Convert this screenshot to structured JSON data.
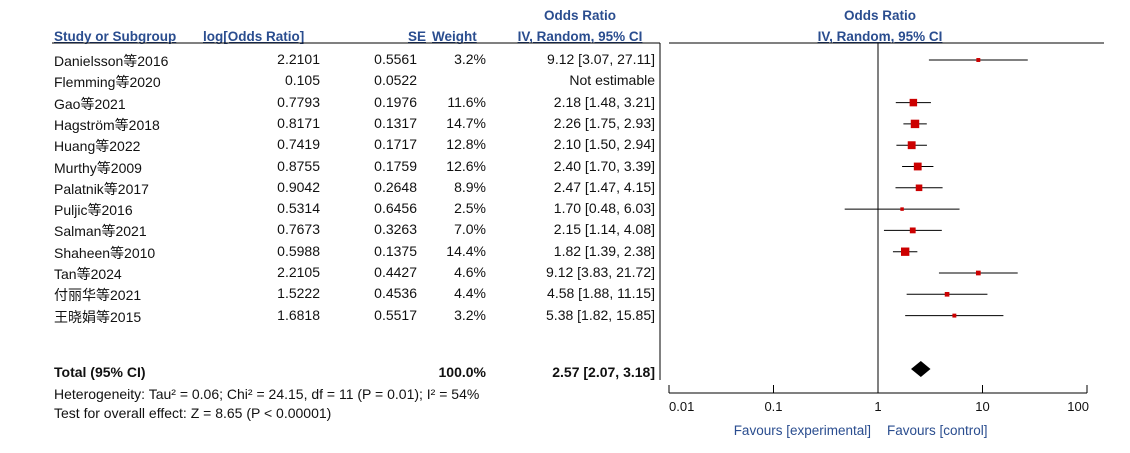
{
  "headers": {
    "study": "Study or Subgroup",
    "logor": "log[Odds Ratio]",
    "se": "SE",
    "weight": "Weight",
    "or_top": "Odds Ratio",
    "or_sub": "IV, Random, 95% CI",
    "plot_top": "Odds Ratio",
    "plot_sub": "IV, Random, 95% CI"
  },
  "chart_data": {
    "type": "forest",
    "x_scale": "log",
    "xlim": [
      0.01,
      100
    ],
    "x_ticks": [
      "0.01",
      "0.1",
      "1",
      "10",
      "100"
    ],
    "xlabel_left": "Favours [experimental]",
    "xlabel_right": "Favours [control]",
    "marker_color": "#cc0000",
    "studies": [
      {
        "name": "Danielsson等2016",
        "logor": "2.2101",
        "se": "0.5561",
        "weight": "3.2%",
        "ci_text": "9.12 [3.07, 27.11]",
        "or": 9.12,
        "lo": 3.07,
        "hi": 27.11,
        "w": 3.2
      },
      {
        "name": "Flemming等2020",
        "logor": "0.105",
        "se": "0.0522",
        "weight": "",
        "ci_text": "Not estimable",
        "or": null,
        "lo": null,
        "hi": null,
        "w": 0
      },
      {
        "name": "Gao等2021",
        "logor": "0.7793",
        "se": "0.1976",
        "weight": "11.6%",
        "ci_text": "2.18 [1.48, 3.21]",
        "or": 2.18,
        "lo": 1.48,
        "hi": 3.21,
        "w": 11.6
      },
      {
        "name": "Hagström等2018",
        "logor": "0.8171",
        "se": "0.1317",
        "weight": "14.7%",
        "ci_text": "2.26 [1.75, 2.93]",
        "or": 2.26,
        "lo": 1.75,
        "hi": 2.93,
        "w": 14.7
      },
      {
        "name": "Huang等2022",
        "logor": "0.7419",
        "se": "0.1717",
        "weight": "12.8%",
        "ci_text": "2.10 [1.50, 2.94]",
        "or": 2.1,
        "lo": 1.5,
        "hi": 2.94,
        "w": 12.8
      },
      {
        "name": "Murthy等2009",
        "logor": "0.8755",
        "se": "0.1759",
        "weight": "12.6%",
        "ci_text": "2.40 [1.70, 3.39]",
        "or": 2.4,
        "lo": 1.7,
        "hi": 3.39,
        "w": 12.6
      },
      {
        "name": "Palatnik等2017",
        "logor": "0.9042",
        "se": "0.2648",
        "weight": "8.9%",
        "ci_text": "2.47 [1.47, 4.15]",
        "or": 2.47,
        "lo": 1.47,
        "hi": 4.15,
        "w": 8.9
      },
      {
        "name": "Puljic等2016",
        "logor": "0.5314",
        "se": "0.6456",
        "weight": "2.5%",
        "ci_text": "1.70 [0.48, 6.03]",
        "or": 1.7,
        "lo": 0.48,
        "hi": 6.03,
        "w": 2.5
      },
      {
        "name": "Salman等2021",
        "logor": "0.7673",
        "se": "0.3263",
        "weight": "7.0%",
        "ci_text": "2.15 [1.14, 4.08]",
        "or": 2.15,
        "lo": 1.14,
        "hi": 4.08,
        "w": 7.0
      },
      {
        "name": "Shaheen等2010",
        "logor": "0.5988",
        "se": "0.1375",
        "weight": "14.4%",
        "ci_text": "1.82 [1.39, 2.38]",
        "or": 1.82,
        "lo": 1.39,
        "hi": 2.38,
        "w": 14.4
      },
      {
        "name": "Tan等2024",
        "logor": "2.2105",
        "se": "0.4427",
        "weight": "4.6%",
        "ci_text": "9.12 [3.83, 21.72]",
        "or": 9.12,
        "lo": 3.83,
        "hi": 21.72,
        "w": 4.6
      },
      {
        "name": "付丽华等2021",
        "logor": "1.5222",
        "se": "0.4536",
        "weight": "4.4%",
        "ci_text": "4.58 [1.88, 11.15]",
        "or": 4.58,
        "lo": 1.88,
        "hi": 11.15,
        "w": 4.4
      },
      {
        "name": "王晓娟等2015",
        "logor": "1.6818",
        "se": "0.5517",
        "weight": "3.2%",
        "ci_text": "5.38 [1.82, 15.85]",
        "or": 5.38,
        "lo": 1.82,
        "hi": 15.85,
        "w": 3.2
      }
    ],
    "total": {
      "label": "Total (95% CI)",
      "weight": "100.0%",
      "ci_text": "2.57 [2.07, 3.18]",
      "or": 2.57,
      "lo": 2.07,
      "hi": 3.18
    },
    "heterogeneity": "Heterogeneity: Tau² = 0.06; Chi² = 24.15, df = 11 (P = 0.01); I² = 54%",
    "overall_effect": "Test for overall effect: Z = 8.65 (P < 0.00001)"
  }
}
